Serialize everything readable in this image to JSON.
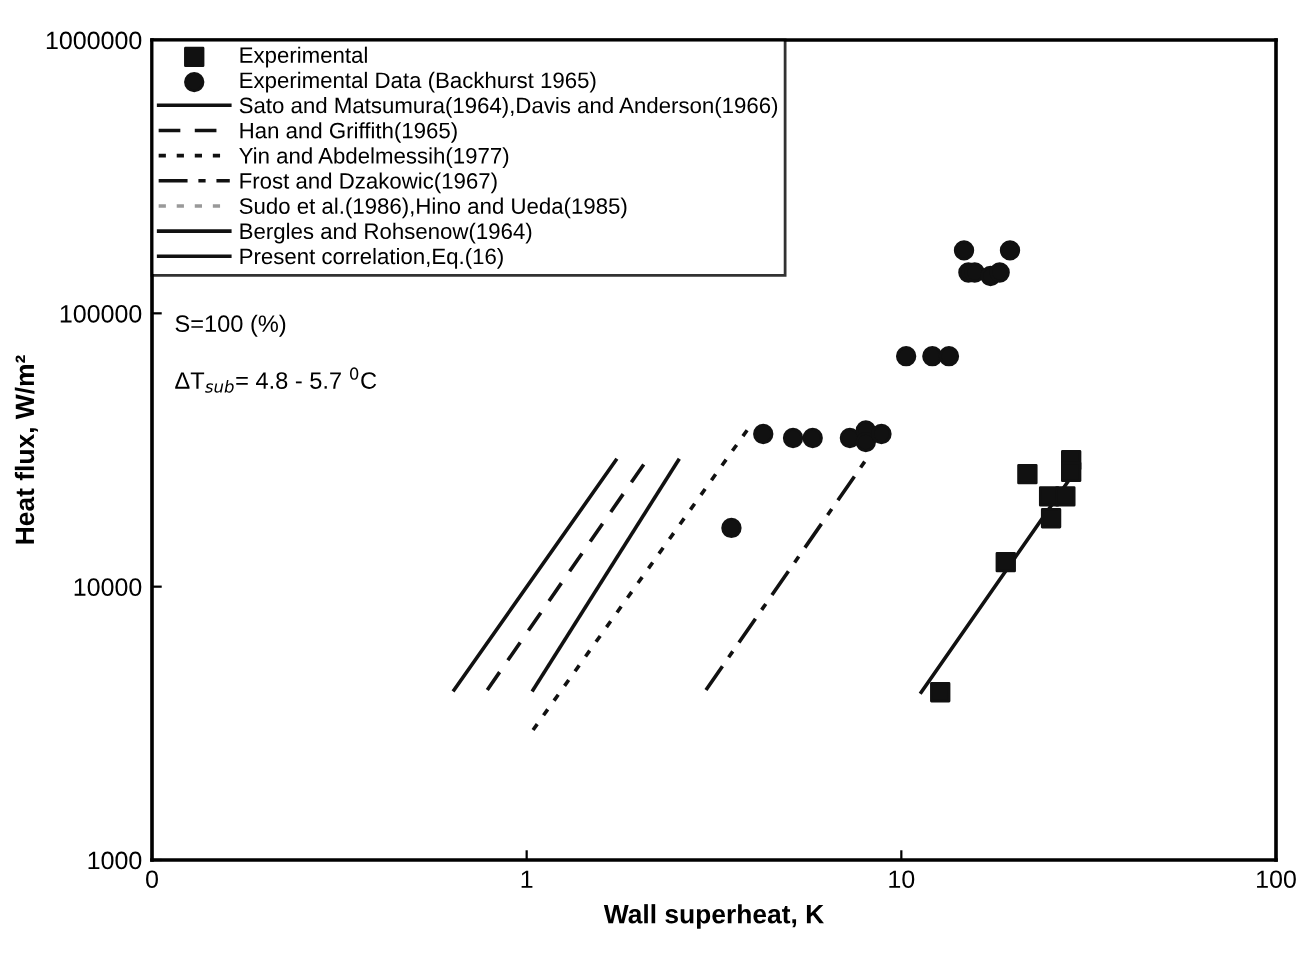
{
  "chart_data": {
    "type": "scatter",
    "xlabel": "Wall superheat, K",
    "ylabel": "Heat flux, W/m²",
    "log": "xy",
    "xlim": [
      0.1,
      100
    ],
    "xticks": [
      {
        "value": 0.1,
        "label": "0"
      },
      1,
      10,
      100
    ],
    "ylim": [
      1000,
      1000000
    ],
    "yticks": [
      1000,
      10000,
      100000,
      1000000
    ],
    "grid": false,
    "legend": "top left",
    "annotations": [
      "S=100 (%)",
      "ΔT$_{sub}$= 4.8 - 5.7 $^{0}$C"
    ],
    "series": [
      {
        "name": "Experimental",
        "marker": "square",
        "color": "#111111",
        "x": [
          12.7,
          19.0,
          21.7,
          25.1,
          24.8,
          27.4,
          28.4,
          28.4
        ],
        "values": [
          4110,
          12300,
          25800,
          17800,
          21400,
          21400,
          29000,
          26300
        ]
      },
      {
        "name": "Experimental Data (Backhurst 1965)",
        "marker": "circle",
        "color": "#111111",
        "x": [
          3.52,
          4.28,
          5.14,
          5.8,
          7.29,
          8.04,
          8.04,
          8.85,
          10.3,
          12.1,
          13.4,
          14.7,
          19.5,
          15.1,
          15.7,
          17.3,
          18.3
        ],
        "values": [
          16400,
          36200,
          35000,
          35000,
          35000,
          37300,
          33800,
          36200,
          69700,
          69700,
          69700,
          170000,
          170000,
          141000,
          141000,
          137000,
          141000
        ]
      },
      {
        "name": "Sato and Matsumura(1964),Davis and Anderson(1966)",
        "type": "line",
        "line_style": "solid",
        "color": "#111111",
        "x": [
          0.64,
          1.73
        ],
        "values": [
          4190,
          29000
        ]
      },
      {
        "name": "Han and Griffith(1965)",
        "type": "line",
        "line_style": "dashed",
        "color": "#111111",
        "x": [
          0.785,
          2.09
        ],
        "values": [
          4190,
          29000
        ]
      },
      {
        "name": "Yin and Abdelmessih(1977)",
        "type": "line",
        "line_style": "dotted",
        "color": "#111111",
        "x": [
          1.04,
          3.98
        ],
        "values": [
          2990,
          39300
        ]
      },
      {
        "name": "Frost and Dzakowic(1967)",
        "type": "line",
        "line_style": "dashdot",
        "color": "#111111",
        "x": [
          3.01,
          8.24
        ],
        "values": [
          4190,
          30500
        ]
      },
      {
        "name": "Sudo et al.(1986),Hino and Ueda(1985)",
        "type": "line",
        "line_style": "dotted",
        "color": "#999999"
      },
      {
        "name": "Bergles and Rohsenow(1964)",
        "type": "line",
        "line_style": "solid",
        "color": "#111111",
        "x": [
          1.04,
          2.54
        ],
        "values": [
          4190,
          29000
        ]
      },
      {
        "name": "Present correlation,Eq.(16)",
        "type": "line",
        "line_style": "solid",
        "color": "#111111",
        "x": [
          11.3,
          28.0
        ],
        "values": [
          4110,
          24500
        ]
      }
    ]
  }
}
